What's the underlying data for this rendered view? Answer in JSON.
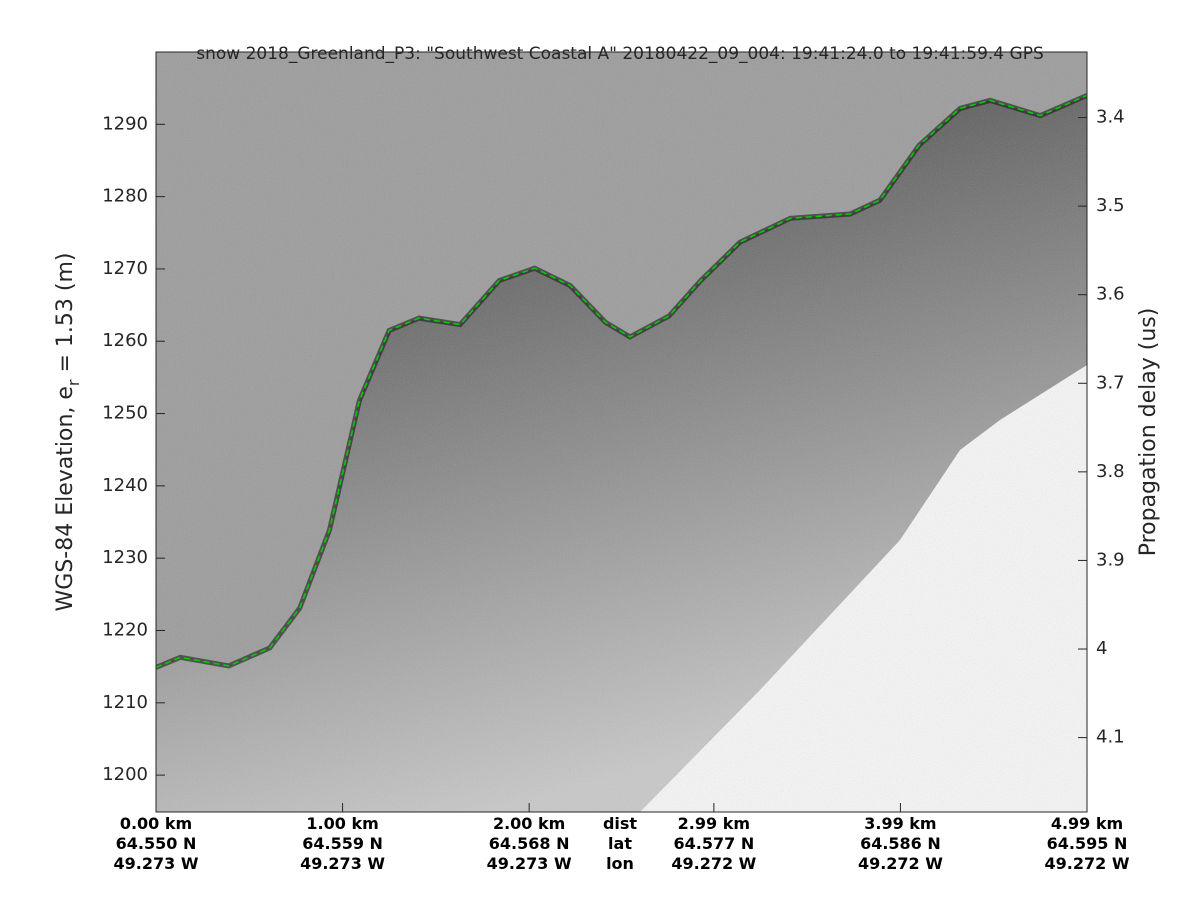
{
  "chart_data": {
    "type": "echogram",
    "title": "snow 2018_Greenland_P3: \"Southwest Coastal A\"  20180422_09_004: 19:41:24.0 to 19:41:59.4 GPS",
    "ylabel": "WGS-84 Elevation, e",
    "ylabel_sub": "r",
    "ylabel_tail": " = 1.53 (m)",
    "y2label": "Propagation delay (us)",
    "xlim": [
      0,
      4.99
    ],
    "ylim": [
      1194.9,
      1300
    ],
    "yticks": [
      1200,
      1210,
      1220,
      1230,
      1240,
      1250,
      1260,
      1270,
      1280,
      1290
    ],
    "y2lim": [
      4.184,
      3.326
    ],
    "y2ticks": [
      3.4,
      3.5,
      3.6,
      3.7,
      3.8,
      3.9,
      4,
      4.1
    ],
    "xticks": [
      {
        "value": 0,
        "label": "0.00 km"
      },
      {
        "value": 1.0,
        "label": "1.00 km"
      },
      {
        "value": 2.0,
        "label": "2.00 km"
      },
      {
        "value": 2.99,
        "label": "2.99 km"
      },
      {
        "value": 3.99,
        "label": "3.99 km"
      },
      {
        "value": 4.99,
        "label": "4.99 km"
      }
    ],
    "xtick_lat": [
      "64.550 N",
      "64.559 N",
      "64.568 N",
      "64.577 N",
      "64.586 N",
      "64.595 N"
    ],
    "xtick_lon": [
      "49.273 W",
      "49.273 W",
      "49.273 W",
      "49.272 W",
      "49.272 W",
      "49.272 W"
    ],
    "x_row_names": [
      "dist",
      "lat",
      "lon"
    ],
    "series": [
      {
        "color": "#00cc00",
        "x": [
          0,
          0.13,
          0.39,
          0.61,
          0.77,
          0.93,
          1.09,
          1.25,
          1.41,
          1.63,
          1.84,
          2.03,
          2.22,
          2.41,
          2.54,
          2.75,
          2.92,
          3.13,
          3.4,
          3.72,
          3.88,
          4.09,
          4.31,
          4.47,
          4.74,
          4.99
        ],
        "values": [
          1214.9,
          1216.3,
          1215.1,
          1217.6,
          1223.1,
          1233.9,
          1251.8,
          1261.5,
          1263.2,
          1262.3,
          1268.4,
          1270.1,
          1267.7,
          1262.6,
          1260.6,
          1263.5,
          1268.4,
          1273.7,
          1277.0,
          1277.6,
          1279.5,
          1287.1,
          1292.2,
          1293.3,
          1291.2,
          1294.0
        ]
      }
    ]
  }
}
